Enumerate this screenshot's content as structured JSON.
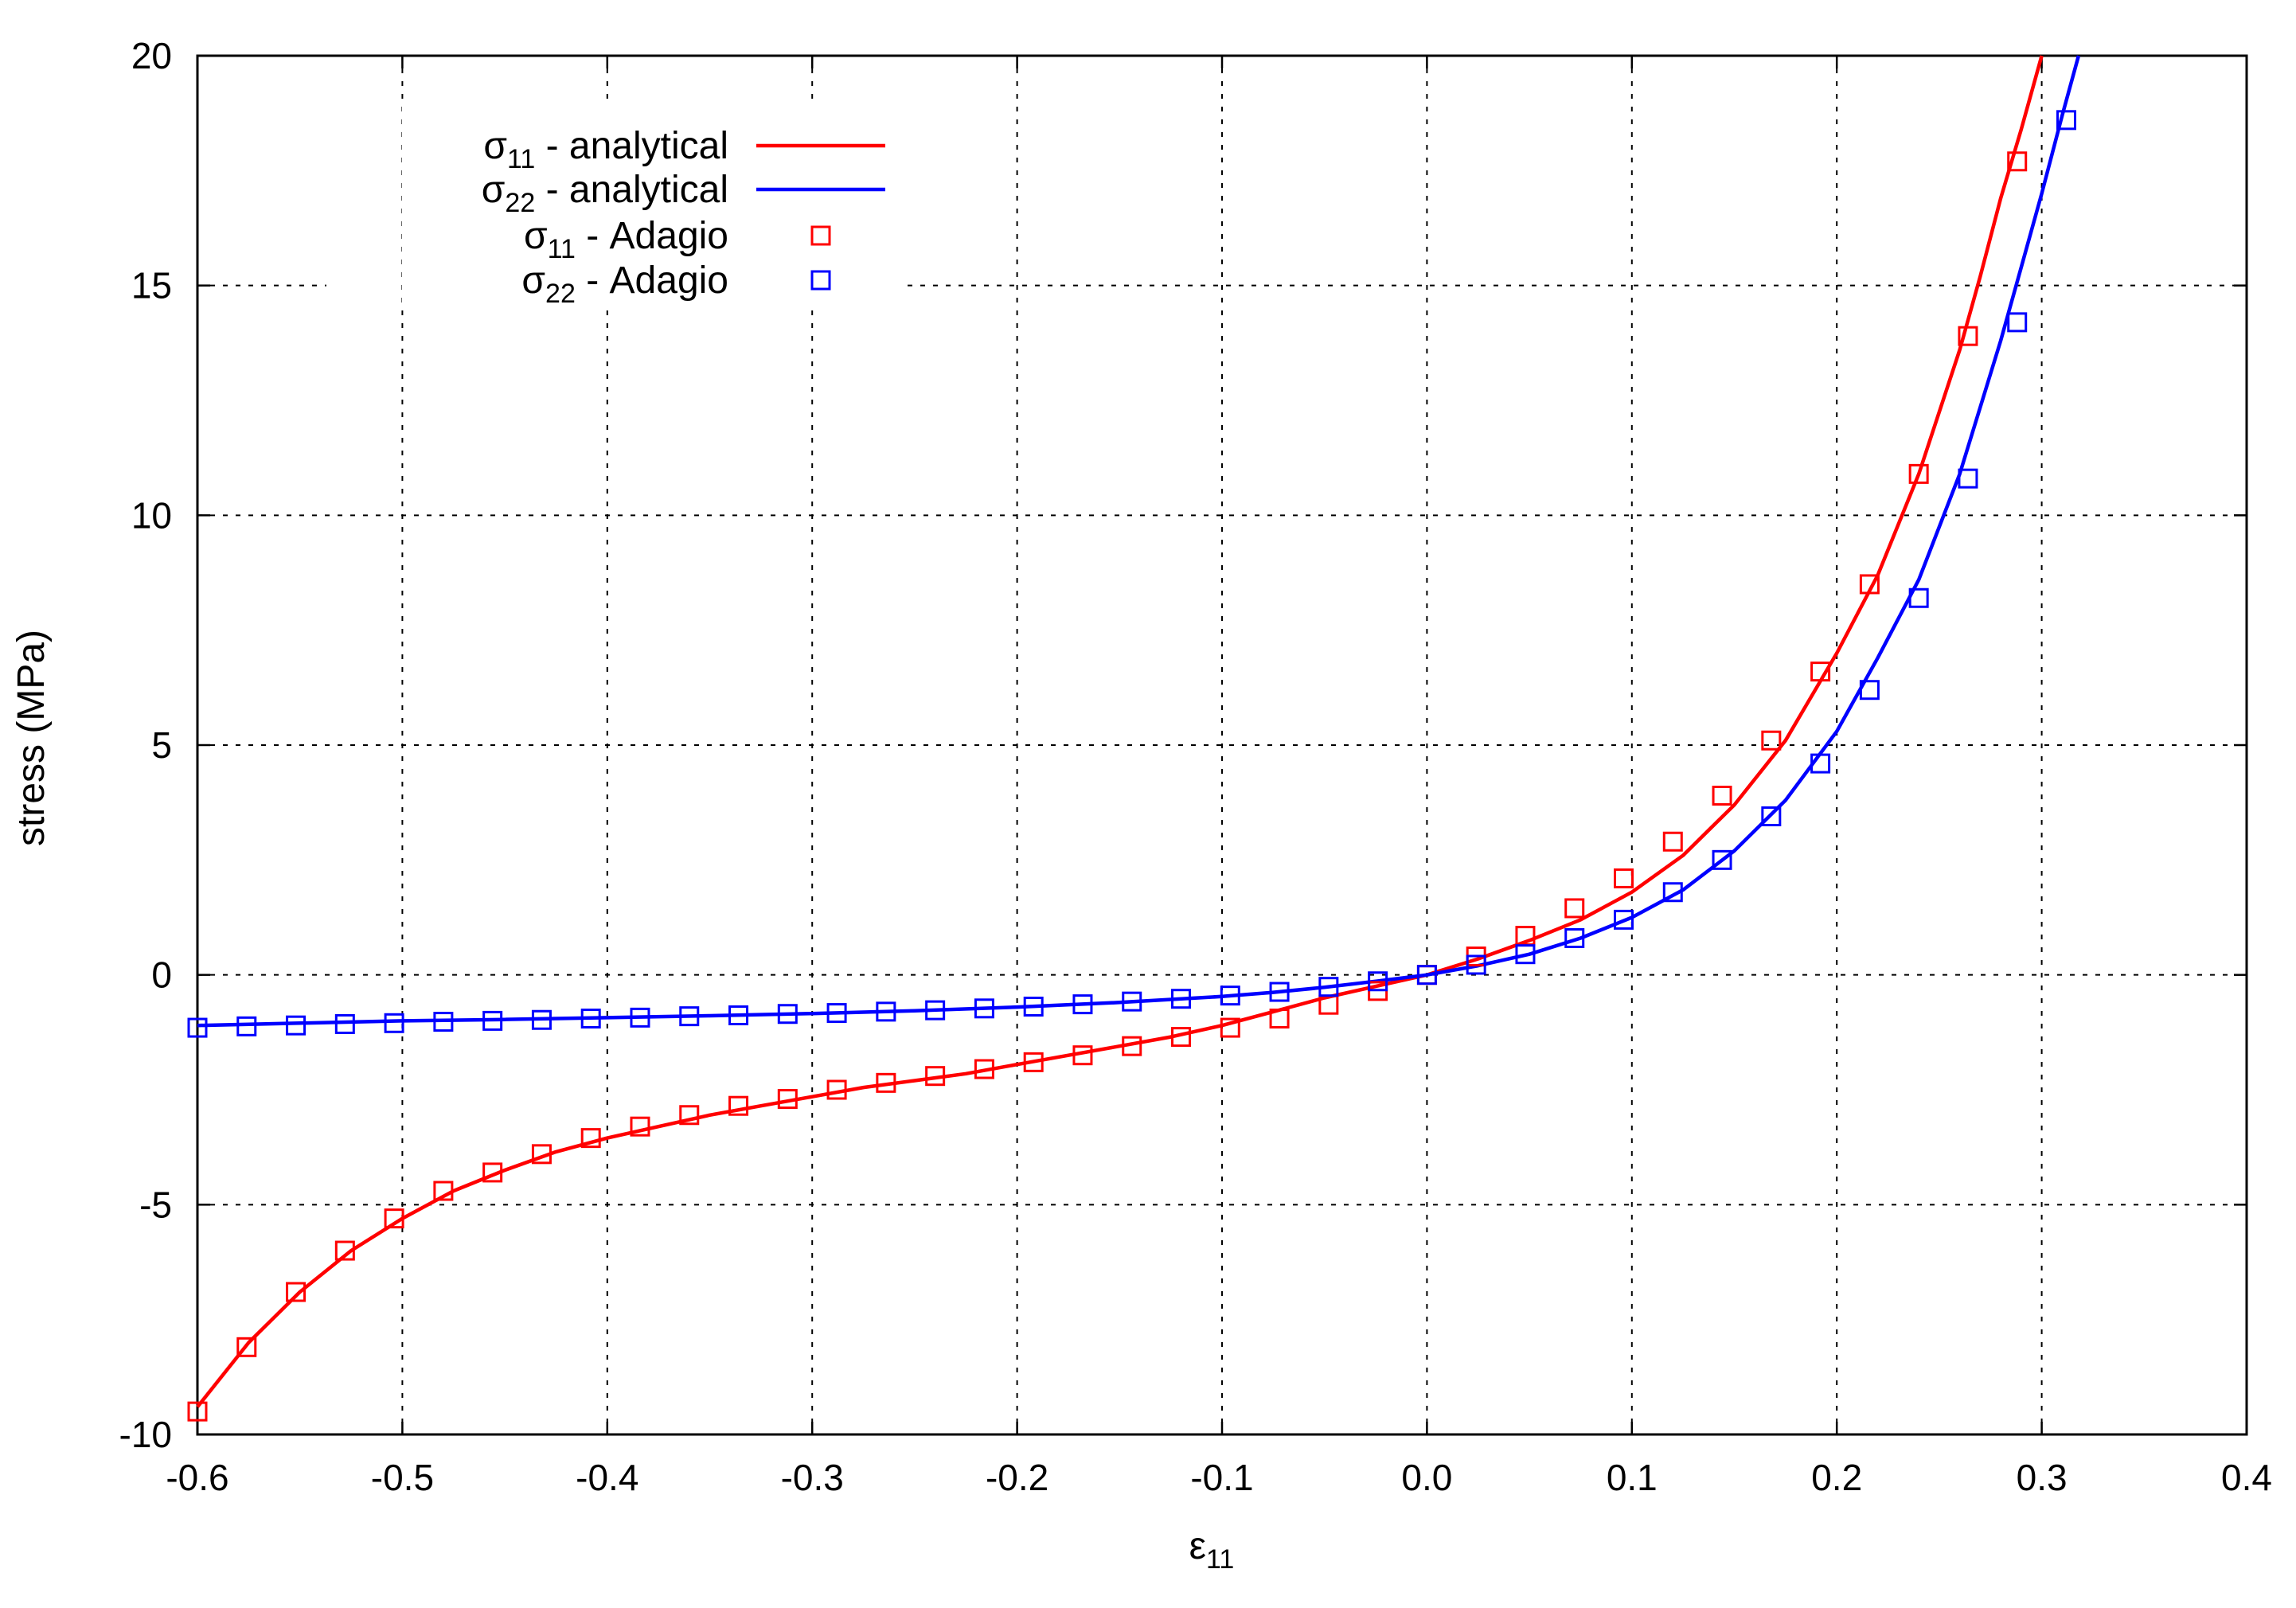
{
  "chart_data": {
    "type": "line",
    "xlabel_base": "ε",
    "xlabel_sub": "11",
    "ylabel": "stress (MPa)",
    "xlim": [
      -0.6,
      0.4
    ],
    "ylim": [
      -10,
      20
    ],
    "grid": true,
    "legend_position": "top-left",
    "x_ticks": [
      -0.6,
      -0.5,
      -0.4,
      -0.3,
      -0.2,
      -0.1,
      0.0,
      0.1,
      0.2,
      0.3,
      0.4
    ],
    "x_tick_labels": [
      "-0.6",
      "-0.5",
      "-0.4",
      "-0.3",
      "-0.2",
      "-0.1",
      "0.0",
      "0.1",
      "0.2",
      "0.3",
      "0.4"
    ],
    "y_ticks": [
      -10,
      -5,
      0,
      5,
      10,
      15,
      20
    ],
    "y_tick_labels": [
      "-10",
      "-5",
      "0",
      "5",
      "10",
      "15",
      "20"
    ],
    "series": [
      {
        "key": "s11-analytical",
        "name_base": "σ",
        "name_sub": "11",
        "name_rest": " - analytical",
        "kind": "line",
        "color": "#ff0000",
        "x": [
          -0.6,
          -0.575,
          -0.55,
          -0.525,
          -0.5,
          -0.475,
          -0.45,
          -0.425,
          -0.4,
          -0.375,
          -0.35,
          -0.325,
          -0.3,
          -0.275,
          -0.25,
          -0.225,
          -0.2,
          -0.175,
          -0.15,
          -0.125,
          -0.1,
          -0.075,
          -0.05,
          -0.025,
          0.0,
          0.025,
          0.05,
          0.075,
          0.1,
          0.125,
          0.15,
          0.175,
          0.2,
          0.22,
          0.24,
          0.26,
          0.27,
          0.28,
          0.29,
          0.3
        ],
        "y": [
          -9.4,
          -8.0,
          -6.9,
          -6.0,
          -5.3,
          -4.7,
          -4.25,
          -3.85,
          -3.55,
          -3.3,
          -3.05,
          -2.85,
          -2.65,
          -2.45,
          -2.3,
          -2.15,
          -1.95,
          -1.75,
          -1.55,
          -1.35,
          -1.1,
          -0.8,
          -0.5,
          -0.25,
          0.0,
          0.35,
          0.75,
          1.2,
          1.8,
          2.6,
          3.7,
          5.1,
          7.0,
          8.7,
          10.9,
          13.6,
          15.2,
          16.9,
          18.4,
          20.0
        ]
      },
      {
        "key": "s22-analytical",
        "name_base": "σ",
        "name_sub": "22",
        "name_rest": " - analytical",
        "kind": "line",
        "color": "#0000ff",
        "x": [
          -0.6,
          -0.55,
          -0.5,
          -0.45,
          -0.4,
          -0.35,
          -0.3,
          -0.25,
          -0.2,
          -0.15,
          -0.1,
          -0.075,
          -0.05,
          -0.025,
          0.0,
          0.025,
          0.05,
          0.075,
          0.1,
          0.125,
          0.15,
          0.175,
          0.2,
          0.22,
          0.24,
          0.26,
          0.28,
          0.29,
          0.3,
          0.31,
          0.318
        ],
        "y": [
          -1.1,
          -1.05,
          -1.0,
          -0.97,
          -0.93,
          -0.89,
          -0.84,
          -0.78,
          -0.7,
          -0.6,
          -0.47,
          -0.38,
          -0.27,
          -0.14,
          0.0,
          0.2,
          0.45,
          0.8,
          1.25,
          1.85,
          2.7,
          3.8,
          5.3,
          6.9,
          8.6,
          10.9,
          13.8,
          15.4,
          17.0,
          18.7,
          20.0
        ]
      },
      {
        "key": "s11-adagio",
        "name_base": "σ",
        "name_sub": "11",
        "name_rest": " - Adagio",
        "kind": "markers",
        "color": "#ff0000",
        "x": [
          -0.6,
          -0.576,
          -0.552,
          -0.528,
          -0.504,
          -0.48,
          -0.456,
          -0.432,
          -0.408,
          -0.384,
          -0.36,
          -0.336,
          -0.312,
          -0.288,
          -0.264,
          -0.24,
          -0.216,
          -0.192,
          -0.168,
          -0.144,
          -0.12,
          -0.096,
          -0.072,
          -0.048,
          -0.024,
          0.0,
          0.024,
          0.048,
          0.072,
          0.096,
          0.12,
          0.144,
          0.168,
          0.192,
          0.216,
          0.24,
          0.264,
          0.288
        ],
        "y": [
          -9.5,
          -8.1,
          -6.9,
          -6.0,
          -5.3,
          -4.7,
          -4.3,
          -3.9,
          -3.55,
          -3.3,
          -3.05,
          -2.85,
          -2.7,
          -2.5,
          -2.35,
          -2.2,
          -2.05,
          -1.9,
          -1.75,
          -1.55,
          -1.35,
          -1.15,
          -0.95,
          -0.65,
          -0.35,
          0.0,
          0.4,
          0.85,
          1.45,
          2.1,
          2.9,
          3.9,
          5.1,
          6.6,
          8.5,
          10.9,
          13.9,
          17.7
        ]
      },
      {
        "key": "s22-adagio",
        "name_base": "σ",
        "name_sub": "22",
        "name_rest": " - Adagio",
        "kind": "markers",
        "color": "#0000ff",
        "x": [
          -0.6,
          -0.576,
          -0.552,
          -0.528,
          -0.504,
          -0.48,
          -0.456,
          -0.432,
          -0.408,
          -0.384,
          -0.36,
          -0.336,
          -0.312,
          -0.288,
          -0.264,
          -0.24,
          -0.216,
          -0.192,
          -0.168,
          -0.144,
          -0.12,
          -0.096,
          -0.072,
          -0.048,
          -0.024,
          0.0,
          0.024,
          0.048,
          0.072,
          0.096,
          0.12,
          0.144,
          0.168,
          0.192,
          0.216,
          0.24,
          0.264,
          0.288,
          0.312
        ],
        "y": [
          -1.15,
          -1.12,
          -1.1,
          -1.07,
          -1.05,
          -1.02,
          -1.0,
          -0.98,
          -0.95,
          -0.93,
          -0.9,
          -0.88,
          -0.85,
          -0.83,
          -0.8,
          -0.77,
          -0.73,
          -0.69,
          -0.64,
          -0.58,
          -0.52,
          -0.45,
          -0.37,
          -0.26,
          -0.14,
          0.0,
          0.22,
          0.45,
          0.8,
          1.2,
          1.8,
          2.5,
          3.45,
          4.6,
          6.2,
          8.2,
          10.8,
          14.2,
          18.6
        ]
      }
    ]
  }
}
